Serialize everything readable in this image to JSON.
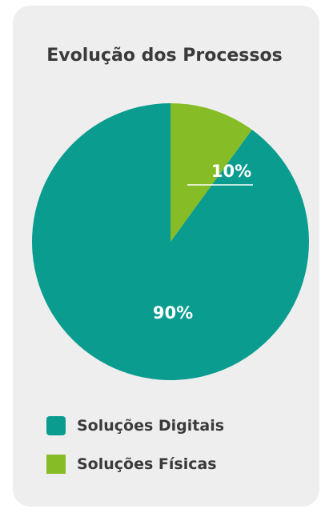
{
  "chart_data": {
    "type": "pie",
    "title": "Evolução dos Processos",
    "slices": [
      {
        "name": "Soluções Digitais",
        "value": 90,
        "label": "90%",
        "color": "#0a9c8f"
      },
      {
        "name": "Soluções Físicas",
        "value": 10,
        "label": "10%",
        "color": "#86bc25"
      }
    ],
    "legend_position": "bottom"
  },
  "colors": {
    "card_background": "#eeeeee",
    "text": "#3a3a3a",
    "label_text": "#ffffff"
  }
}
